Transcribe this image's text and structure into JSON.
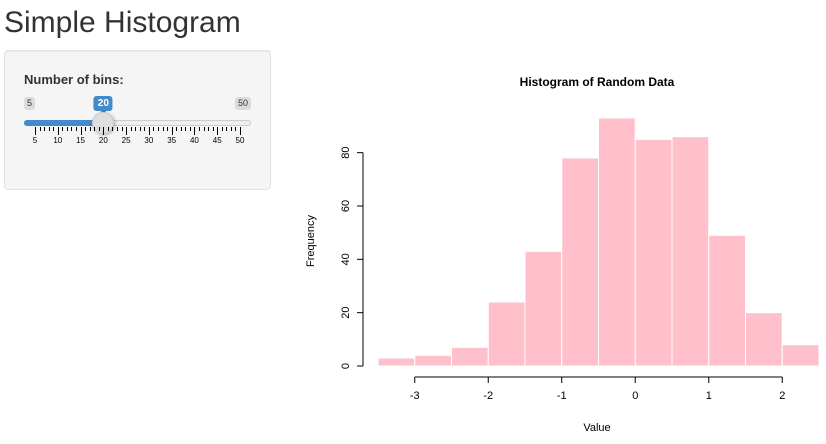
{
  "app": {
    "title": "Simple Histogram"
  },
  "sidebar": {
    "slider": {
      "label": "Number of bins:",
      "min": 5,
      "max": 50,
      "value": 20,
      "min_label": "5",
      "max_label": "50",
      "value_label": "20",
      "grid_major": [
        5,
        10,
        15,
        20,
        25,
        30,
        35,
        40,
        45,
        50
      ],
      "grid_minor_per_major": 4,
      "accent_color": "#428bca"
    }
  },
  "chart_data": {
    "type": "bar",
    "title": "Histogram of Random Data",
    "xlabel": "Value",
    "ylabel": "Frequency",
    "bin_edges": [
      -3.5,
      -3.0,
      -2.5,
      -2.0,
      -1.5,
      -1.0,
      -0.5,
      0.0,
      0.5,
      1.0,
      1.5,
      2.0,
      2.5
    ],
    "values": [
      3,
      4,
      7,
      24,
      43,
      78,
      93,
      85,
      86,
      49,
      20,
      8
    ],
    "x_ticks": [
      -3,
      -2,
      -1,
      0,
      1,
      2
    ],
    "x_tick_labels": [
      "-3",
      "-2",
      "-1",
      "0",
      "1",
      "2"
    ],
    "y_ticks": [
      0,
      20,
      40,
      60,
      80
    ],
    "y_tick_labels": [
      "0",
      "20",
      "40",
      "60",
      "80"
    ],
    "xlim": [
      -3.5,
      2.5
    ],
    "ylim": [
      0,
      93
    ],
    "bar_color": "#ffc0cb",
    "bar_border_color": "#ffffff",
    "grid": false,
    "legend": "none"
  }
}
